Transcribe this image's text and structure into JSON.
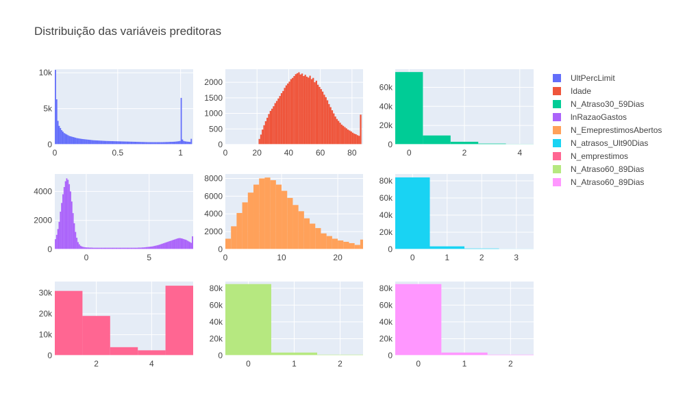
{
  "title": "Distribuição das variáveis preditoras",
  "colors": {
    "plot_bg": "#e5ecf6",
    "grid": "#ffffff",
    "text": "#444444"
  },
  "chart_data": [
    {
      "type": "bar",
      "name": "UltPercLimit",
      "color": "#636efa",
      "x_range": [
        0,
        1.1
      ],
      "ylim": [
        0,
        10500
      ],
      "xticks": [
        0,
        0.5,
        1
      ],
      "xtick_labels": [
        "0",
        "0.5",
        "1"
      ],
      "yticks": [
        0,
        5000,
        10000
      ],
      "ytick_labels": [
        "0",
        "5k",
        "10k"
      ],
      "bin_start": 0,
      "bin_width": 0.01,
      "values": [
        10400,
        6300,
        3300,
        2600,
        2300,
        2000,
        1800,
        1600,
        1500,
        1400,
        1300,
        1200,
        1150,
        1100,
        1050,
        1000,
        950,
        900,
        870,
        840,
        810,
        780,
        760,
        740,
        720,
        700,
        680,
        660,
        640,
        620,
        600,
        590,
        580,
        570,
        560,
        550,
        540,
        530,
        520,
        510,
        500,
        495,
        490,
        485,
        480,
        475,
        470,
        465,
        460,
        455,
        450,
        445,
        440,
        435,
        430,
        425,
        420,
        415,
        410,
        405,
        400,
        395,
        390,
        385,
        380,
        375,
        370,
        365,
        360,
        355,
        350,
        345,
        340,
        335,
        330,
        330,
        330,
        330,
        330,
        330,
        330,
        330,
        330,
        330,
        330,
        330,
        340,
        340,
        350,
        350,
        360,
        370,
        380,
        380,
        390,
        400,
        420,
        440,
        460,
        500,
        6500,
        700,
        500,
        450,
        420,
        400,
        380,
        360,
        800
      ]
    },
    {
      "type": "bar",
      "name": "Idade",
      "color": "#ef553b",
      "x_range": [
        0,
        87
      ],
      "ylim": [
        0,
        2420
      ],
      "xticks": [
        0,
        20,
        40,
        60,
        80
      ],
      "xtick_labels": [
        "0",
        "20",
        "40",
        "60",
        "80"
      ],
      "yticks": [
        0,
        500,
        1000,
        1500,
        2000
      ],
      "ytick_labels": [
        "0",
        "500",
        "1000",
        "1500",
        "2000"
      ],
      "bin_start": 21,
      "bin_width": 1,
      "values": [
        180,
        320,
        480,
        620,
        750,
        860,
        980,
        1080,
        1150,
        1230,
        1330,
        1400,
        1480,
        1560,
        1650,
        1720,
        1820,
        1900,
        1960,
        2020,
        2100,
        2140,
        2200,
        2260,
        2290,
        2320,
        2250,
        2280,
        2200,
        2240,
        2180,
        2150,
        2210,
        2100,
        2140,
        2000,
        2050,
        1920,
        1850,
        1780,
        1700,
        1600,
        1520,
        1420,
        1300,
        1200,
        1100,
        1000,
        900,
        820,
        760,
        700,
        640,
        600,
        560,
        520,
        480,
        450,
        420,
        380,
        350,
        330,
        300,
        280,
        960
      ]
    },
    {
      "type": "bar",
      "name": "N_Atraso30_59Dias",
      "color": "#00cc96",
      "x_range": [
        -0.5,
        4.5
      ],
      "ylim": [
        0,
        79000
      ],
      "xticks": [
        0,
        2,
        4
      ],
      "xtick_labels": [
        "0",
        "2",
        "4"
      ],
      "yticks": [
        0,
        20000,
        40000,
        60000
      ],
      "ytick_labels": [
        "0",
        "20k",
        "40k",
        "60k"
      ],
      "bin_start": -0.5,
      "bin_width": 1,
      "values": [
        76000,
        9500,
        2900,
        1000,
        500
      ]
    },
    {
      "type": "bar",
      "name": "lnRazaoGastos",
      "color": "#ab63fa",
      "x_range": [
        -2.5,
        8.5
      ],
      "ylim": [
        0,
        5200
      ],
      "xticks": [
        0,
        5
      ],
      "xtick_labels": [
        "0",
        "5"
      ],
      "yticks": [
        0,
        2000,
        4000
      ],
      "ytick_labels": [
        "0",
        "2000",
        "4000"
      ],
      "bin_start": -2.5,
      "bin_width": 0.1,
      "values": [
        700,
        1000,
        1400,
        1900,
        2600,
        3200,
        3800,
        4300,
        4700,
        4900,
        4800,
        4500,
        4000,
        3300,
        2500,
        1800,
        1200,
        800,
        500,
        350,
        250,
        200,
        170,
        150,
        140,
        130,
        130,
        120,
        120,
        120,
        110,
        110,
        110,
        110,
        110,
        110,
        110,
        110,
        110,
        110,
        110,
        110,
        110,
        110,
        110,
        110,
        110,
        110,
        110,
        110,
        110,
        110,
        110,
        110,
        110,
        110,
        110,
        110,
        110,
        110,
        110,
        110,
        110,
        110,
        110,
        110,
        120,
        120,
        120,
        130,
        130,
        140,
        150,
        160,
        170,
        180,
        190,
        200,
        220,
        240,
        260,
        280,
        300,
        330,
        360,
        390,
        420,
        450,
        480,
        510,
        540,
        570,
        600,
        630,
        660,
        690,
        720,
        750,
        770,
        780,
        760,
        740,
        710,
        680,
        650,
        600,
        550,
        500,
        450,
        900
      ]
    },
    {
      "type": "bar",
      "name": "N_EmeprestimosAbertos",
      "color": "#ffa15a",
      "x_range": [
        0,
        24.5
      ],
      "ylim": [
        0,
        8500
      ],
      "xticks": [
        0,
        10,
        20
      ],
      "xtick_labels": [
        "0",
        "10",
        "20"
      ],
      "yticks": [
        0,
        2000,
        4000,
        6000,
        8000
      ],
      "ytick_labels": [
        "0",
        "2000",
        "4000",
        "6000",
        "8000"
      ],
      "bin_start": 0,
      "bin_width": 1,
      "values": [
        1200,
        2600,
        4100,
        5300,
        6400,
        7300,
        8000,
        8100,
        7800,
        7300,
        6600,
        5800,
        5000,
        4300,
        3500,
        2900,
        2400,
        1800,
        1500,
        1200,
        1000,
        850,
        700,
        500,
        1100
      ]
    },
    {
      "type": "bar",
      "name": "N_atrasos_Ult90Dias",
      "color": "#19d3f3",
      "x_range": [
        -0.5,
        3.5
      ],
      "ylim": [
        0,
        88000
      ],
      "xticks": [
        0,
        1,
        2,
        3
      ],
      "xtick_labels": [
        "0",
        "1",
        "2",
        "3"
      ],
      "yticks": [
        0,
        20000,
        40000,
        60000,
        80000
      ],
      "ytick_labels": [
        "0",
        "20k",
        "40k",
        "60k",
        "80k"
      ],
      "bin_start": -0.5,
      "bin_width": 1,
      "values": [
        84000,
        3500,
        1000,
        500
      ]
    },
    {
      "type": "bar",
      "name": "N_emprestimos",
      "color": "#ff6692",
      "x_range": [
        0.5,
        5.5
      ],
      "ylim": [
        0,
        35500
      ],
      "xticks": [
        2,
        4
      ],
      "xtick_labels": [
        "2",
        "4"
      ],
      "yticks": [
        0,
        10000,
        20000,
        30000
      ],
      "ytick_labels": [
        "0",
        "10k",
        "20k",
        "30k"
      ],
      "bin_start": 0.5,
      "bin_width": 1,
      "values": [
        31000,
        19000,
        4000,
        2500,
        33500
      ]
    },
    {
      "type": "bar",
      "name": "N_Atraso60_89Dias",
      "color": "#b6e880",
      "x_range": [
        -0.5,
        2.5
      ],
      "ylim": [
        0,
        88000
      ],
      "xticks": [
        0,
        1,
        2
      ],
      "xtick_labels": [
        "0",
        "1",
        "2"
      ],
      "yticks": [
        0,
        20000,
        40000,
        60000,
        80000
      ],
      "ytick_labels": [
        "0",
        "20k",
        "40k",
        "60k",
        "80k"
      ],
      "bin_start": -0.5,
      "bin_width": 1,
      "values": [
        85000,
        3500,
        1000
      ]
    },
    {
      "type": "bar",
      "name": "N_Atraso60_89Dias",
      "color": "#ff97ff",
      "x_range": [
        -0.5,
        2.5
      ],
      "ylim": [
        0,
        88000
      ],
      "xticks": [
        0,
        1,
        2
      ],
      "xtick_labels": [
        "0",
        "1",
        "2"
      ],
      "yticks": [
        0,
        20000,
        40000,
        60000,
        80000
      ],
      "ytick_labels": [
        "0",
        "20k",
        "40k",
        "60k",
        "80k"
      ],
      "bin_start": -0.5,
      "bin_width": 1,
      "values": [
        85000,
        3500,
        1000
      ]
    }
  ]
}
